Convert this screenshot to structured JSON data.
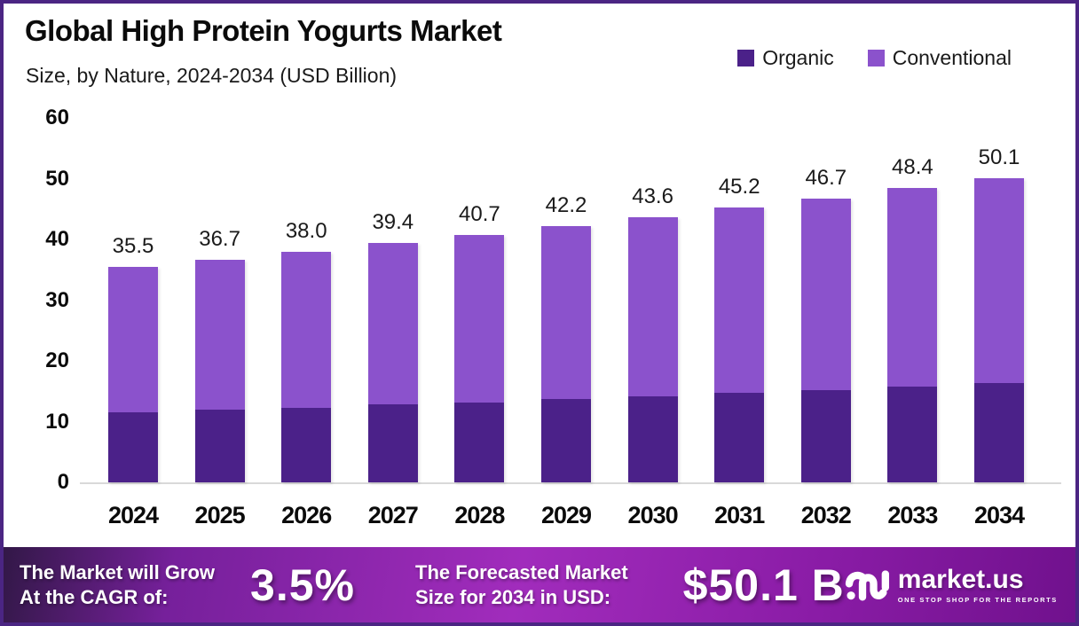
{
  "header": {
    "title": "Global High Protein Yogurts Market",
    "subtitle": "Size, by Nature, 2024-2034 (USD Billion)"
  },
  "chart_data": {
    "type": "bar",
    "subtype": "stacked-column",
    "title": "Global High Protein Yogurts Market",
    "subtitle": "Size, by Nature, 2024-2034 (USD Billion)",
    "unit": "USD Billion",
    "categories": [
      "2024",
      "2025",
      "2026",
      "2027",
      "2028",
      "2029",
      "2030",
      "2031",
      "2032",
      "2033",
      "2034"
    ],
    "series": [
      {
        "name": "Organic",
        "color": "#4B2189",
        "values": [
          11.5,
          11.9,
          12.3,
          12.8,
          13.2,
          13.7,
          14.2,
          14.7,
          15.2,
          15.8,
          16.4
        ]
      },
      {
        "name": "Conventional",
        "color": "#8B52CC",
        "values": [
          24.0,
          24.8,
          25.7,
          26.6,
          27.5,
          28.5,
          29.4,
          30.5,
          31.5,
          32.6,
          33.7
        ]
      }
    ],
    "totals": [
      "35.5",
      "36.7",
      "38.0",
      "39.4",
      "40.7",
      "42.2",
      "43.6",
      "45.2",
      "46.7",
      "48.4",
      "50.1"
    ],
    "ylim": [
      0,
      60
    ],
    "yticks": [
      0,
      10,
      20,
      30,
      40,
      50,
      60
    ],
    "grid": false,
    "legend_position": "top-right"
  },
  "legend": {
    "items": [
      {
        "label": "Organic",
        "color": "#4B2189"
      },
      {
        "label": "Conventional",
        "color": "#8B52CC"
      }
    ]
  },
  "banner": {
    "cagr_label_line1": "The Market will Grow",
    "cagr_label_line2": "At the CAGR of:",
    "cagr_value": "3.5%",
    "forecast_label_line1": "The Forecasted Market",
    "forecast_label_line2": "Size for 2034 in USD:",
    "forecast_value": "$50.1 B"
  },
  "logo": {
    "name": "market.us",
    "tagline": "ONE STOP SHOP FOR THE REPORTS"
  }
}
